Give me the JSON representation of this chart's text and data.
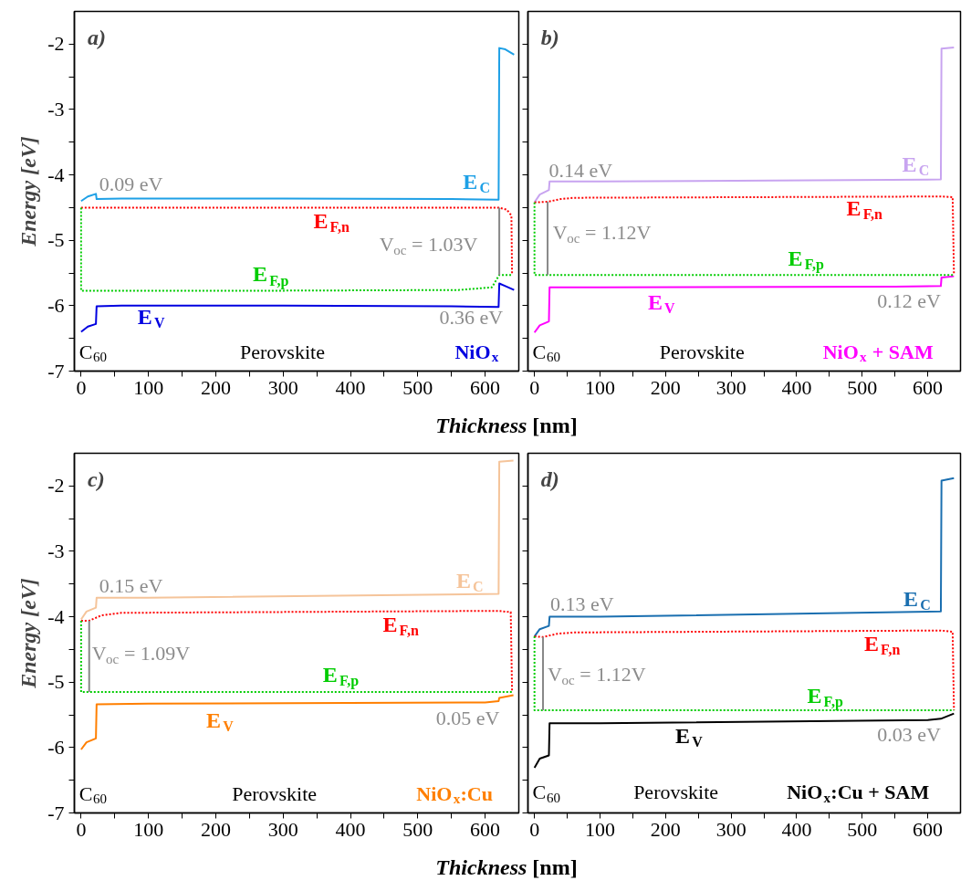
{
  "chart_data": [
    {
      "type": "line",
      "title": "a)",
      "xlabel": "Thickness [nm]",
      "ylabel": "Energy [eV]",
      "xlim": [
        -10,
        650
      ],
      "ylim": [
        -7,
        -1.5
      ],
      "xticks": [
        0,
        100,
        200,
        300,
        400,
        500,
        600,
        {
          "value": 50,
          "label": null
        },
        {
          "value": 150,
          "label": null
        },
        {
          "value": 250,
          "label": null
        },
        {
          "value": 350,
          "label": null
        },
        {
          "value": 450,
          "label": null
        },
        {
          "value": 550,
          "label": null
        }
      ],
      "yticks": [
        -7,
        -6,
        -5,
        -4,
        -3,
        -2,
        {
          "value": -6.5,
          "label": null
        },
        {
          "value": -5.5,
          "label": null
        },
        {
          "value": -4.5,
          "label": null
        },
        {
          "value": -3.5,
          "label": null
        },
        {
          "value": -2.5,
          "label": null
        }
      ],
      "series": [
        {
          "name": "E$_{C}$",
          "color": "#1ea0e6",
          "x": [
            0,
            10,
            22,
            23,
            60,
            300,
            550,
            620,
            621,
            630,
            643
          ],
          "values": [
            -4.4,
            -4.33,
            -4.29,
            -4.37,
            -4.36,
            -4.36,
            -4.37,
            -4.38,
            -2.06,
            -2.08,
            -2.16
          ]
        },
        {
          "name": "E$_{V}$",
          "color": "#0000e0",
          "x": [
            0,
            10,
            22,
            23,
            60,
            300,
            550,
            620,
            621,
            630,
            643
          ],
          "values": [
            -6.4,
            -6.32,
            -6.28,
            -6.01,
            -6.0,
            -6.0,
            -6.01,
            -6.02,
            -5.66,
            -5.7,
            -5.76
          ]
        },
        {
          "name": "E$_{F,n}$",
          "color": "#ff0000",
          "line_style": "dotted",
          "x": [
            0,
            620,
            632,
            639,
            640
          ],
          "values": [
            -4.5,
            -4.5,
            -4.53,
            -4.62,
            -5.53
          ]
        },
        {
          "name": "E$_{F,p}$",
          "color": "#00cc00",
          "line_style": "dotted",
          "x": [
            0,
            0,
            300,
            560,
            610,
            621,
            640
          ],
          "values": [
            -4.5,
            -5.77,
            -5.77,
            -5.76,
            -5.72,
            -5.53,
            -5.53
          ]
        },
        {
          "color": "#888888",
          "x": [
            621,
            621
          ],
          "values": [
            -4.5,
            -5.53
          ]
        }
      ],
      "annotations": [
        "0.09 eV",
        "V$_{oc}$ = 1.03V",
        "0.36 eV",
        "C$_{60}$",
        "Perovskite",
        "NiO$_{x}$"
      ]
    },
    {
      "type": "line",
      "title": "b)",
      "xlim": [
        -10,
        650
      ],
      "ylim": [
        -7,
        -1.5
      ],
      "tick_labels": "x",
      "xticks": [
        0,
        100,
        200,
        300,
        400,
        500,
        600,
        {
          "value": 50,
          "label": null
        },
        {
          "value": 150,
          "label": null
        },
        {
          "value": 250,
          "label": null
        },
        {
          "value": 350,
          "label": null
        },
        {
          "value": 450,
          "label": null
        },
        {
          "value": 550,
          "label": null
        }
      ],
      "yticks": [
        -7,
        -6,
        -5,
        -4,
        -3,
        -2,
        {
          "value": -6.5,
          "label": null
        },
        {
          "value": -5.5,
          "label": null
        },
        {
          "value": -4.5,
          "label": null
        },
        {
          "value": -3.5,
          "label": null
        },
        {
          "value": -2.5,
          "label": null
        }
      ],
      "series": [
        {
          "name": "E$_{C}$",
          "color": "#c8a4f0",
          "x": [
            0,
            8,
            22,
            23,
            100,
            620,
            621,
            640
          ],
          "values": [
            -4.42,
            -4.3,
            -4.23,
            -4.1,
            -4.1,
            -4.07,
            -2.07,
            -2.05
          ]
        },
        {
          "name": "E$_{V}$",
          "color": "#ff00ff",
          "x": [
            0,
            8,
            22,
            23,
            100,
            550,
            620,
            621,
            640
          ],
          "values": [
            -6.41,
            -6.3,
            -6.24,
            -5.72,
            -5.72,
            -5.71,
            -5.7,
            -5.57,
            -5.55
          ]
        },
        {
          "name": "E$_{F,n}$",
          "color": "#ff0000",
          "line_style": "dotted",
          "x": [
            0,
            20,
            40,
            60,
            620,
            638,
            640
          ],
          "values": [
            -4.42,
            -4.41,
            -4.37,
            -4.35,
            -4.33,
            -4.34,
            -5.53
          ]
        },
        {
          "name": "E$_{F,p}$",
          "color": "#00cc00",
          "line_style": "dotted",
          "x": [
            0,
            0,
            640
          ],
          "values": [
            -4.42,
            -5.53,
            -5.53
          ]
        },
        {
          "color": "#888888",
          "x": [
            20,
            20
          ],
          "values": [
            -4.41,
            -5.53
          ]
        }
      ],
      "annotations": [
        "0.14 eV",
        "V$_{oc}$ = 1.12V",
        "0.12 eV",
        "C$_{60}$",
        "Perovskite",
        "NiO$_{x}$ + SAM"
      ]
    },
    {
      "type": "line",
      "title": "c)",
      "xlabel": "Thickness [nm]",
      "ylabel": "Energy [eV]",
      "xlim": [
        -10,
        650
      ],
      "ylim": [
        -7,
        -1.5
      ],
      "xticks": [
        0,
        100,
        200,
        300,
        400,
        500,
        600,
        {
          "value": 50,
          "label": null
        },
        {
          "value": 150,
          "label": null
        },
        {
          "value": 250,
          "label": null
        },
        {
          "value": 350,
          "label": null
        },
        {
          "value": 450,
          "label": null
        },
        {
          "value": 550,
          "label": null
        }
      ],
      "yticks": [
        -7,
        -6,
        -5,
        -4,
        -3,
        -2,
        {
          "value": -6.5,
          "label": null
        },
        {
          "value": -5.5,
          "label": null
        },
        {
          "value": -4.5,
          "label": null
        },
        {
          "value": -3.5,
          "label": null
        },
        {
          "value": -2.5,
          "label": null
        }
      ],
      "series": [
        {
          "name": "E$_{C}$",
          "color": "#f5c49a",
          "x": [
            0,
            8,
            22,
            23,
            100,
            620,
            621,
            642
          ],
          "values": [
            -4.04,
            -3.92,
            -3.86,
            -3.71,
            -3.71,
            -3.65,
            -1.63,
            -1.61
          ]
        },
        {
          "name": "E$_{V}$",
          "color": "#ff7f00",
          "x": [
            0,
            8,
            22,
            23,
            100,
            600,
            620,
            621,
            642
          ],
          "values": [
            -6.03,
            -5.92,
            -5.86,
            -5.34,
            -5.33,
            -5.31,
            -5.29,
            -5.24,
            -5.2
          ]
        },
        {
          "name": "E$_{F,n}$",
          "color": "#ff0000",
          "line_style": "dotted",
          "x": [
            0,
            12,
            30,
            60,
            620,
            638,
            640
          ],
          "values": [
            -4.06,
            -4.06,
            -3.98,
            -3.94,
            -3.91,
            -3.93,
            -5.15
          ]
        },
        {
          "name": "E$_{F,p}$",
          "color": "#00cc00",
          "line_style": "dotted",
          "x": [
            0,
            0,
            640
          ],
          "values": [
            -4.06,
            -5.15,
            -5.15
          ]
        },
        {
          "color": "#888888",
          "x": [
            12,
            12
          ],
          "values": [
            -4.06,
            -5.15
          ]
        }
      ],
      "annotations": [
        "0.15 eV",
        "V$_{oc}$ = 1.09V",
        "0.05 eV",
        "C$_{60}$",
        "Perovskite",
        "NiO$_{x}$:Cu"
      ]
    },
    {
      "type": "line",
      "title": "d)",
      "xlim": [
        -10,
        650
      ],
      "ylim": [
        -7,
        -1.5
      ],
      "tick_labels": "x",
      "xticks": [
        0,
        100,
        200,
        300,
        400,
        500,
        600,
        {
          "value": 50,
          "label": null
        },
        {
          "value": 150,
          "label": null
        },
        {
          "value": 250,
          "label": null
        },
        {
          "value": 350,
          "label": null
        },
        {
          "value": 450,
          "label": null
        },
        {
          "value": 550,
          "label": null
        }
      ],
      "yticks": [
        -7,
        -6,
        -5,
        -4,
        -3,
        -2,
        {
          "value": -6.5,
          "label": null
        },
        {
          "value": -5.5,
          "label": null
        },
        {
          "value": -4.5,
          "label": null
        },
        {
          "value": -3.5,
          "label": null
        },
        {
          "value": -2.5,
          "label": null
        }
      ],
      "series": [
        {
          "name": "E$_{C}$",
          "color": "#1a6fb0",
          "x": [
            0,
            8,
            22,
            23,
            100,
            620,
            621,
            640
          ],
          "values": [
            -4.3,
            -4.19,
            -4.14,
            -4.0,
            -4.0,
            -3.92,
            -1.92,
            -1.88
          ]
        },
        {
          "name": "E$_{V}$",
          "color": "#000000",
          "x": [
            0,
            8,
            22,
            23,
            100,
            600,
            620,
            640
          ],
          "values": [
            -6.31,
            -6.17,
            -6.12,
            -5.63,
            -5.63,
            -5.58,
            -5.56,
            -5.48
          ]
        },
        {
          "name": "E$_{F,n}$",
          "color": "#ff0000",
          "line_style": "dotted",
          "x": [
            0,
            13,
            35,
            60,
            620,
            638,
            640
          ],
          "values": [
            -4.3,
            -4.31,
            -4.26,
            -4.24,
            -4.21,
            -4.23,
            -5.43
          ]
        },
        {
          "name": "E$_{F,p}$",
          "color": "#00cc00",
          "line_style": "dotted",
          "x": [
            0,
            0,
            640
          ],
          "values": [
            -4.3,
            -5.43,
            -5.43
          ]
        },
        {
          "color": "#888888",
          "x": [
            13,
            13
          ],
          "values": [
            -4.31,
            -5.43
          ]
        }
      ],
      "annotations": [
        "0.13 eV",
        "V$_{oc}$ = 1.12V",
        "0.03 eV",
        "C$_{60}$",
        "Perovskite",
        "NiO$_{x}$:Cu + SAM"
      ]
    }
  ]
}
